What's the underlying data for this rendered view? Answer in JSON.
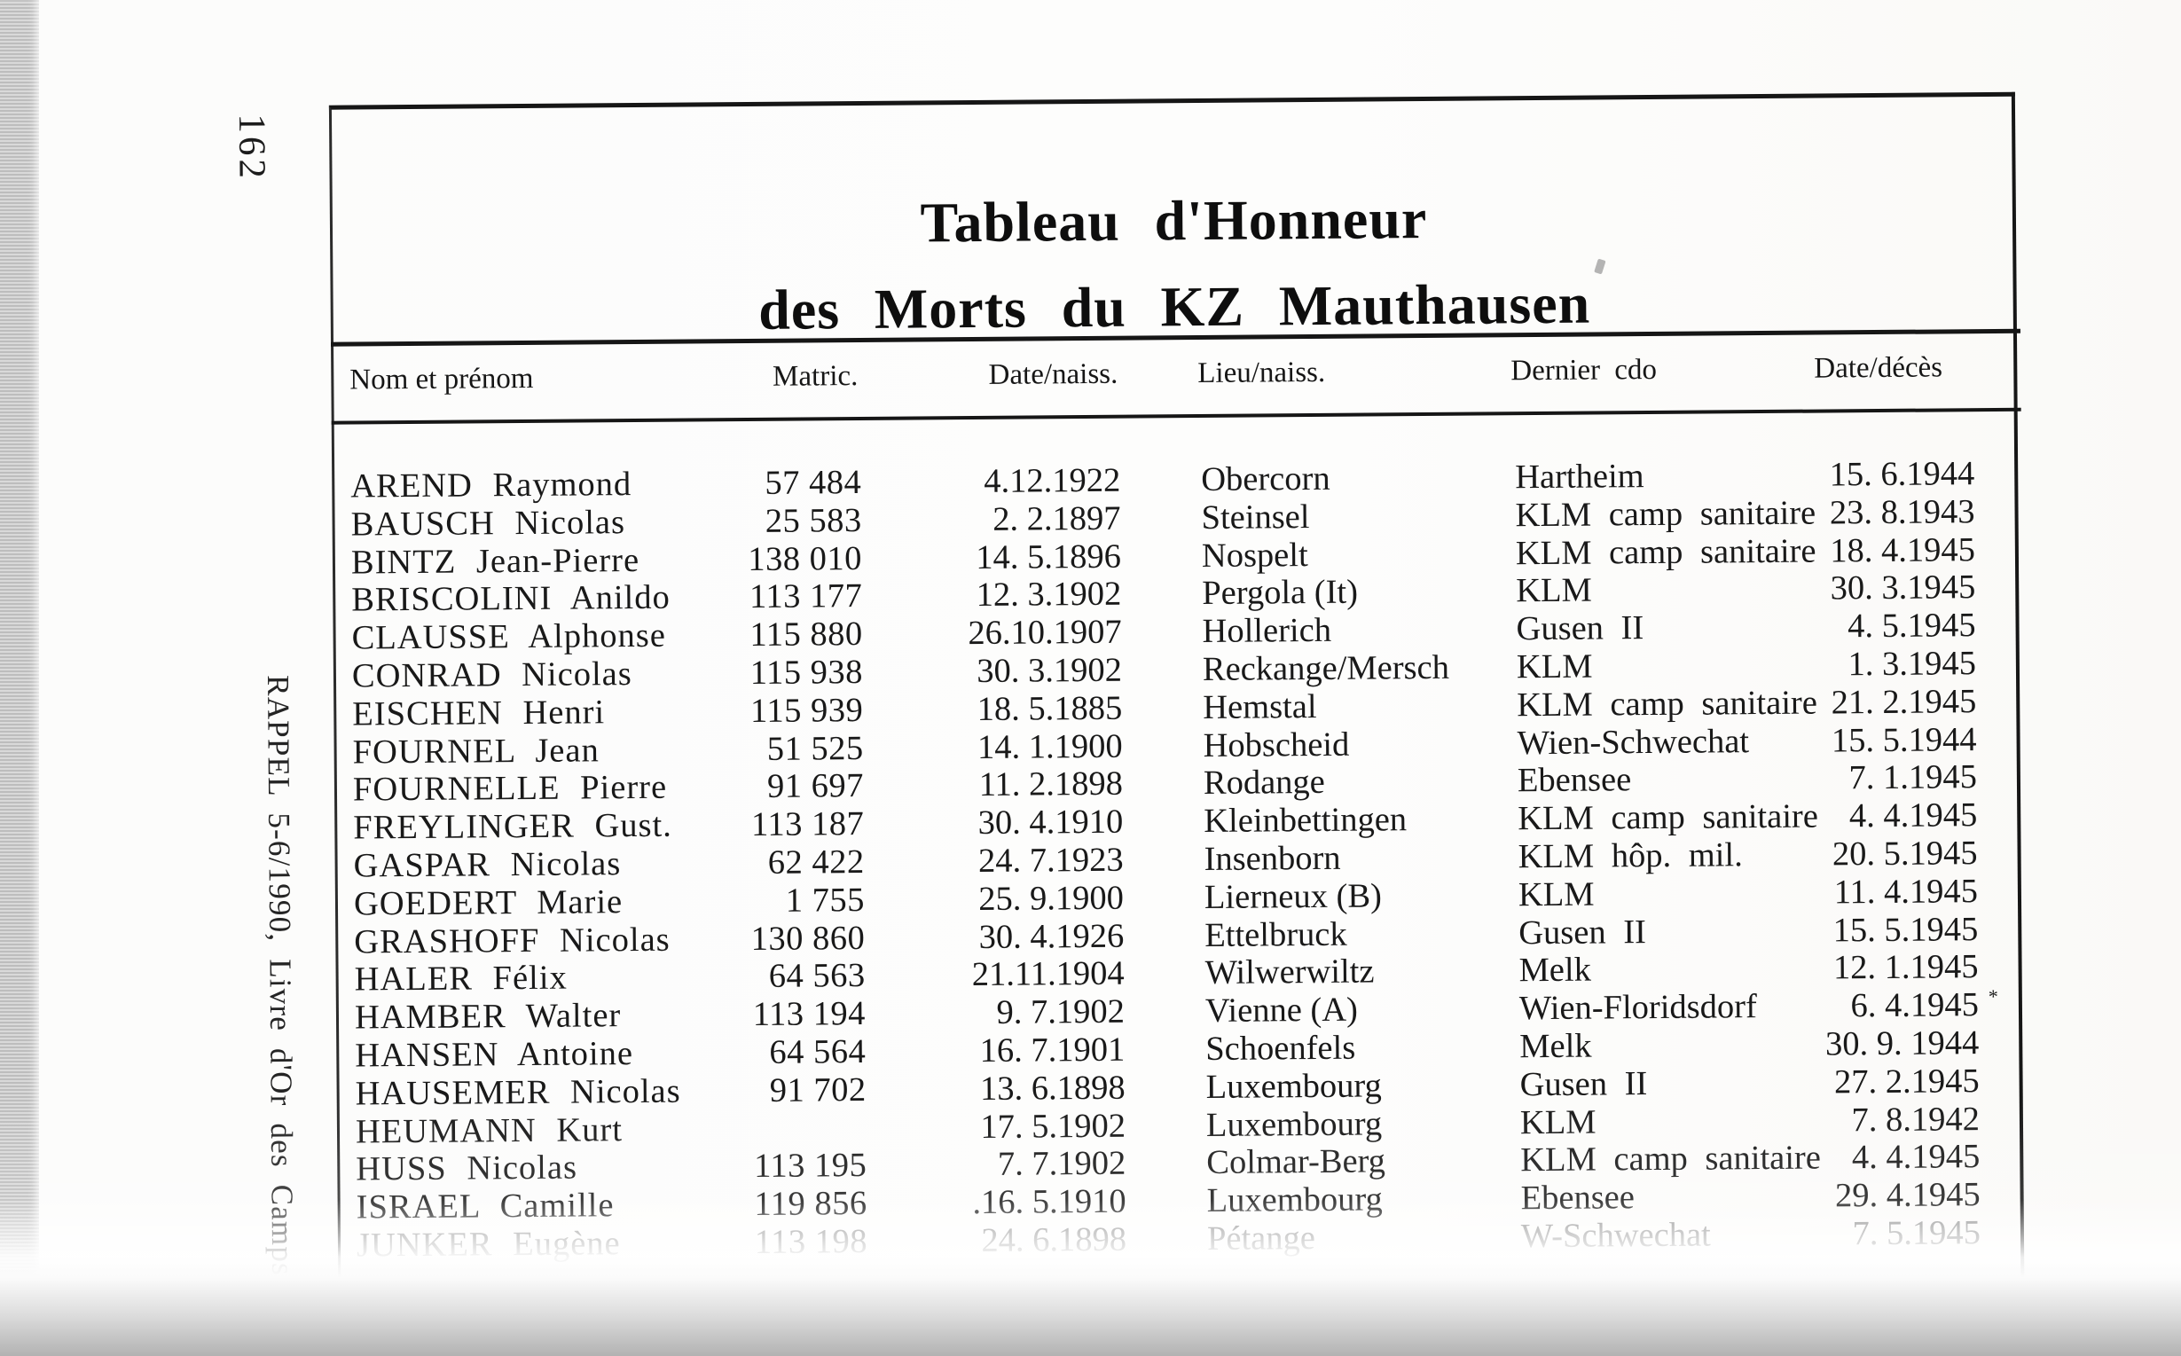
{
  "page": {
    "page_number": "162",
    "margin_caption": "RAPPEL 5-6/1990, Livre d'Or des Camps"
  },
  "table": {
    "title_line1": "Tableau d'Honneur",
    "title_line2": "des Morts du KZ Mauthausen",
    "columns": [
      "Nom et prénom",
      "Matric.",
      "Date/naiss.",
      "Lieu/naiss.",
      "Dernier cdo",
      "Date/décès"
    ],
    "rows": [
      {
        "name": "AREND Raymond",
        "matric": "57 484",
        "birth": "4.12.1922",
        "place": "Obercorn",
        "last_cdo": "Hartheim",
        "death": "15. 6.1944",
        "note": ""
      },
      {
        "name": "BAUSCH Nicolas",
        "matric": "25 583",
        "birth": "2. 2.1897",
        "place": "Steinsel",
        "last_cdo": "KLM camp sanitaire",
        "death": "23. 8.1943",
        "note": ""
      },
      {
        "name": "BINTZ Jean-Pierre",
        "matric": "138 010",
        "birth": "14. 5.1896",
        "place": "Nospelt",
        "last_cdo": "KLM camp sanitaire",
        "death": "18. 4.1945",
        "note": ""
      },
      {
        "name": "BRISCOLINI Anildo",
        "matric": "113 177",
        "birth": "12. 3.1902",
        "place": "Pergola (It)",
        "last_cdo": "KLM",
        "death": "30. 3.1945",
        "note": ""
      },
      {
        "name": "CLAUSSE Alphonse",
        "matric": "115 880",
        "birth": "26.10.1907",
        "place": "Hollerich",
        "last_cdo": "Gusen II",
        "death": "4. 5.1945",
        "note": ""
      },
      {
        "name": "CONRAD Nicolas",
        "matric": "115 938",
        "birth": "30. 3.1902",
        "place": "Reckange/Mersch",
        "last_cdo": "KLM",
        "death": "1. 3.1945",
        "note": ""
      },
      {
        "name": "EISCHEN Henri",
        "matric": "115 939",
        "birth": "18. 5.1885",
        "place": "Hemstal",
        "last_cdo": "KLM camp sanitaire",
        "death": "21. 2.1945",
        "note": ""
      },
      {
        "name": "FOURNEL Jean",
        "matric": "51 525",
        "birth": "14. 1.1900",
        "place": "Hobscheid",
        "last_cdo": "Wien-Schwechat",
        "death": "15. 5.1944",
        "note": ""
      },
      {
        "name": "FOURNELLE Pierre",
        "matric": "91 697",
        "birth": "11. 2.1898",
        "place": "Rodange",
        "last_cdo": "Ebensee",
        "death": "7. 1.1945",
        "note": ""
      },
      {
        "name": "FREYLINGER Gust.",
        "matric": "113 187",
        "birth": "30. 4.1910",
        "place": "Kleinbettingen",
        "last_cdo": "KLM camp sanitaire",
        "death": "4. 4.1945",
        "note": ""
      },
      {
        "name": "GASPAR Nicolas",
        "matric": "62 422",
        "birth": "24. 7.1923",
        "place": "Insenborn",
        "last_cdo": "KLM hôp. mil.",
        "death": "20. 5.1945",
        "note": ""
      },
      {
        "name": "GOEDERT Marie",
        "matric": "1 755",
        "birth": "25. 9.1900",
        "place": "Lierneux (B)",
        "last_cdo": "KLM",
        "death": "11. 4.1945",
        "note": ""
      },
      {
        "name": "GRASHOFF Nicolas",
        "matric": "130 860",
        "birth": "30. 4.1926",
        "place": "Ettelbruck",
        "last_cdo": "Gusen II",
        "death": "15. 5.1945",
        "note": ""
      },
      {
        "name": "HALER Félix",
        "matric": "64 563",
        "birth": "21.11.1904",
        "place": "Wilwerwiltz",
        "last_cdo": "Melk",
        "death": "12. 1.1945",
        "note": ""
      },
      {
        "name": "HAMBER Walter",
        "matric": "113 194",
        "birth": "9. 7.1902",
        "place": "Vienne (A)",
        "last_cdo": "Wien-Floridsdorf",
        "death": "6. 4.1945",
        "note": "*"
      },
      {
        "name": "HANSEN Antoine",
        "matric": "64 564",
        "birth": "16. 7.1901",
        "place": "Schoenfels",
        "last_cdo": "Melk",
        "death": "30. 9. 1944",
        "note": ""
      },
      {
        "name": "HAUSEMER Nicolas",
        "matric": "91 702",
        "birth": "13. 6.1898",
        "place": "Luxembourg",
        "last_cdo": "Gusen II",
        "death": "27. 2.1945",
        "note": ""
      },
      {
        "name": "HEUMANN Kurt",
        "matric": "",
        "birth": "17. 5.1902",
        "place": "Luxembourg",
        "last_cdo": "KLM",
        "death": "7. 8.1942",
        "note": ""
      },
      {
        "name": "HUSS Nicolas",
        "matric": "113 195",
        "birth": "7. 7.1902",
        "place": "Colmar-Berg",
        "last_cdo": "KLM camp sanitaire",
        "death": "4. 4.1945",
        "note": ""
      },
      {
        "name": "ISRAEL Camille",
        "matric": "119 856",
        "birth": ".16. 5.1910",
        "place": "Luxembourg",
        "last_cdo": "Ebensee",
        "death": "29. 4.1945",
        "note": ""
      },
      {
        "name": "JUNKER Eugène",
        "matric": "113 198",
        "birth": "24. 6.1898",
        "place": "Pétange",
        "last_cdo": "W-Schwechat",
        "death": "7. 5.1945",
        "note": ""
      }
    ]
  }
}
